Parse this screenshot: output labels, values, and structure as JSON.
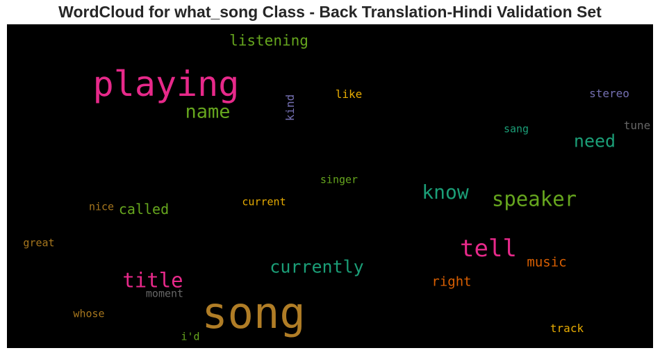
{
  "chart_data": {
    "type": "wordcloud",
    "title": "WordCloud for what_song Class - Back Translation-Hindi Validation Set",
    "background": "#000000",
    "words": [
      {
        "text": "song",
        "color": "#b07d26",
        "orientation": "horizontal"
      },
      {
        "text": "playing",
        "color": "#e7298a",
        "orientation": "horizontal"
      },
      {
        "text": "tell",
        "color": "#e7298a",
        "orientation": "horizontal"
      },
      {
        "text": "title",
        "color": "#e7298a",
        "orientation": "horizontal"
      },
      {
        "text": "name",
        "color": "#66a61e",
        "orientation": "horizontal"
      },
      {
        "text": "speaker",
        "color": "#66a61e",
        "orientation": "horizontal"
      },
      {
        "text": "know",
        "color": "#1b9e77",
        "orientation": "horizontal"
      },
      {
        "text": "currently",
        "color": "#1b9e77",
        "orientation": "horizontal"
      },
      {
        "text": "need",
        "color": "#1b9e77",
        "orientation": "horizontal"
      },
      {
        "text": "listening",
        "color": "#66a61e",
        "orientation": "horizontal"
      },
      {
        "text": "called",
        "color": "#66a61e",
        "orientation": "horizontal"
      },
      {
        "text": "music",
        "color": "#d95f02",
        "orientation": "horizontal"
      },
      {
        "text": "right",
        "color": "#d95f02",
        "orientation": "horizontal"
      },
      {
        "text": "like",
        "color": "#e6ab02",
        "orientation": "horizontal"
      },
      {
        "text": "kind",
        "color": "#7570b3",
        "orientation": "vertical"
      },
      {
        "text": "stereo",
        "color": "#7570b3",
        "orientation": "horizontal"
      },
      {
        "text": "tune",
        "color": "#666666",
        "orientation": "horizontal"
      },
      {
        "text": "sang",
        "color": "#1b9e77",
        "orientation": "horizontal"
      },
      {
        "text": "singer",
        "color": "#66a61e",
        "orientation": "horizontal"
      },
      {
        "text": "current",
        "color": "#e6ab02",
        "orientation": "horizontal"
      },
      {
        "text": "nice",
        "color": "#a6761d",
        "orientation": "horizontal"
      },
      {
        "text": "great",
        "color": "#a6761d",
        "orientation": "horizontal"
      },
      {
        "text": "moment",
        "color": "#666666",
        "orientation": "horizontal"
      },
      {
        "text": "whose",
        "color": "#a6761d",
        "orientation": "horizontal"
      },
      {
        "text": "i'd",
        "color": "#66a61e",
        "orientation": "horizontal"
      },
      {
        "text": "track",
        "color": "#e6ab02",
        "orientation": "horizontal"
      }
    ]
  }
}
